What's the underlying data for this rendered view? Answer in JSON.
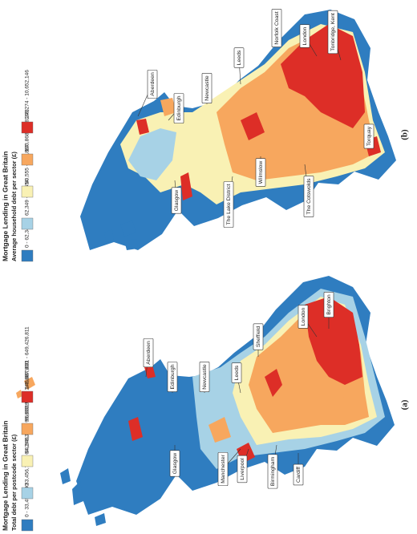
{
  "panels": [
    {
      "label": "(a)",
      "legend": {
        "title": "Mortgage Lending in Great Britain",
        "subtitle": "Total debt per postcode sector (£)",
        "classes": [
          {
            "label": "0 - 33,456,700",
            "color": "#2f7dc0"
          },
          {
            "label": "33,456,701 - 64,246,340",
            "color": "#a7d2e6"
          },
          {
            "label": "64,246,341 - 96,603,925",
            "color": "#f9f1b4"
          },
          {
            "label": "96,603,926 - 146,887,830",
            "color": "#f7a75e"
          },
          {
            "label": "146,887,831 - 649,426,811",
            "color": "#dd2e27"
          }
        ]
      },
      "places": [
        "Aberdeen",
        "Edinburgh",
        "Newcastle",
        "Leeds",
        "Sheffield",
        "London",
        "Brighton",
        "Glasgow",
        "Manchester",
        "Liverpool",
        "Birmingham",
        "Cardiff"
      ]
    },
    {
      "label": "(b)",
      "legend": {
        "title": "Mortgage Lending in Great Britain",
        "subtitle": "Average household debt per sector (£)",
        "classes": [
          {
            "label": "0 - 62,348",
            "color": "#2f7dc0"
          },
          {
            "label": "62,349 - 80,554",
            "color": "#a7d2e6"
          },
          {
            "label": "80,555 - 103,867",
            "color": "#f9f1b4"
          },
          {
            "label": "103,868 - 148,273",
            "color": "#f7a75e"
          },
          {
            "label": "148,274 - 10,652,146",
            "color": "#dd2e27"
          }
        ]
      },
      "places": [
        "Aberdeen",
        "Edinburgh",
        "Newcastle",
        "Leeds",
        "Norfolk Coast",
        "London",
        "Tonbridge, Kent",
        "Torquay",
        "Glasgow",
        "The Lake District",
        "Wilmslow",
        "The Cotswolds"
      ]
    }
  ]
}
